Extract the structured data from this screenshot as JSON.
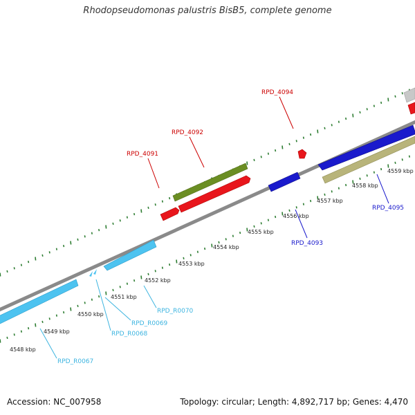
{
  "title": "Rhodopseudomonas palustris BisB5, complete genome",
  "footer": {
    "accession": "Accession: NC_007958",
    "summary": "Topology: circular; Length: 4,892,717 bp; Genes: 4,470"
  },
  "scale": {
    "unit": "kbp",
    "ticks": [
      {
        "value": 4548,
        "label": "4548 kbp"
      },
      {
        "value": 4549,
        "label": "4549 kbp"
      },
      {
        "value": 4550,
        "label": "4550 kbp"
      },
      {
        "value": 4551,
        "label": "4551 kbp"
      },
      {
        "value": 4552,
        "label": "4552 kbp"
      },
      {
        "value": 4553,
        "label": "4553 kbp"
      },
      {
        "value": 4554,
        "label": "4554 kbp"
      },
      {
        "value": 4555,
        "label": "4555 kbp"
      },
      {
        "value": 4556,
        "label": "4556 kbp"
      },
      {
        "value": 4557,
        "label": "4557 kbp"
      },
      {
        "value": 4558,
        "label": "4558 kbp"
      },
      {
        "value": 4559,
        "label": "4559 kbp"
      }
    ]
  },
  "colors": {
    "backbone": "#888888",
    "tick": "#2e7d32",
    "rrna": "#4dc3f0",
    "cds_forward": "#e8161c",
    "cds_reverse": "#1a1acc",
    "gene_olive": "#6b8e23",
    "gene_khaki": "#b8b47a",
    "gene_gray": "#c8c8c8"
  },
  "labels": [
    {
      "id": "RPD_4091",
      "text": "RPD_4091",
      "color": "#cc0000"
    },
    {
      "id": "RPD_4092",
      "text": "RPD_4092",
      "color": "#cc0000"
    },
    {
      "id": "RPD_4094",
      "text": "RPD_4094",
      "color": "#cc0000"
    },
    {
      "id": "RPD_4093",
      "text": "RPD_4093",
      "color": "#1a1acc"
    },
    {
      "id": "RPD_4095",
      "text": "RPD_4095",
      "color": "#1a1acc"
    },
    {
      "id": "RPD_R0067",
      "text": "RPD_R0067",
      "color": "#3cb4e0"
    },
    {
      "id": "RPD_R0068",
      "text": "RPD_R0068",
      "color": "#3cb4e0"
    },
    {
      "id": "RPD_R0069",
      "text": "RPD_R0069",
      "color": "#3cb4e0"
    },
    {
      "id": "RPD_R0070",
      "text": "RPD_R0070",
      "color": "#3cb4e0"
    }
  ]
}
